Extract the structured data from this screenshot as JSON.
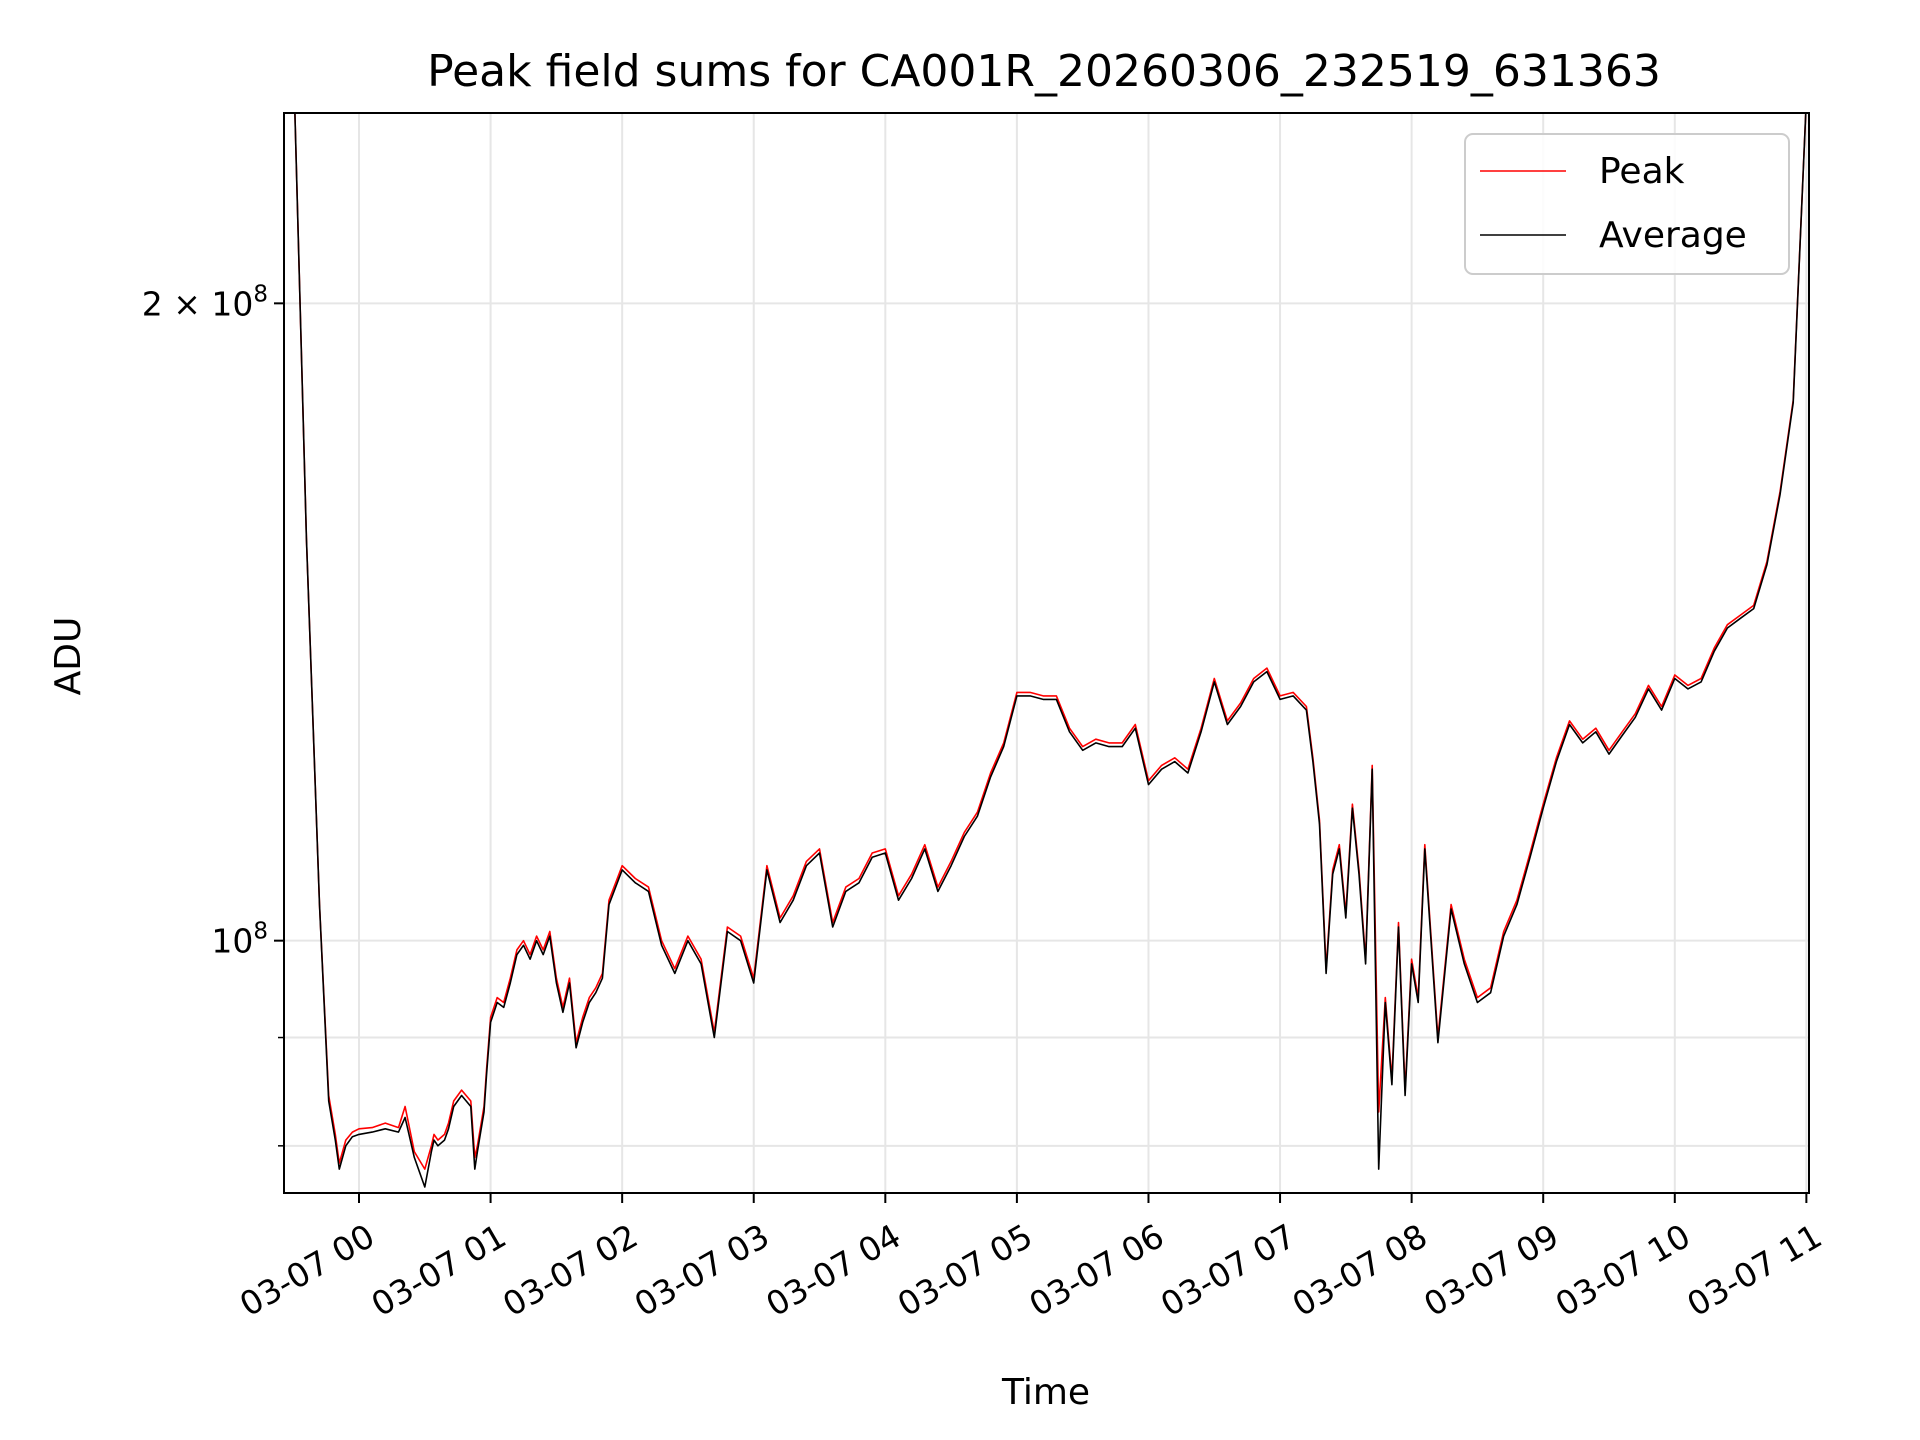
{
  "chart_data": {
    "type": "line",
    "title": "Peak field sums for CA001R_20260306_232519_631363",
    "xlabel": "Time",
    "ylabel": "ADU",
    "yscale": "log",
    "ylim": [
      76000000,
      246000000
    ],
    "xlim_hours": [
      -0.57,
      11.02
    ],
    "grid": true,
    "legend": {
      "placement": "top-right",
      "entries": [
        "Peak",
        "Average"
      ]
    },
    "x_ticks": [
      {
        "hour": 0,
        "label": "03-07 00"
      },
      {
        "hour": 1,
        "label": "03-07 01"
      },
      {
        "hour": 2,
        "label": "03-07 02"
      },
      {
        "hour": 3,
        "label": "03-07 03"
      },
      {
        "hour": 4,
        "label": "03-07 04"
      },
      {
        "hour": 5,
        "label": "03-07 05"
      },
      {
        "hour": 6,
        "label": "03-07 06"
      },
      {
        "hour": 7,
        "label": "03-07 07"
      },
      {
        "hour": 8,
        "label": "03-07 08"
      },
      {
        "hour": 9,
        "label": "03-07 09"
      },
      {
        "hour": 10,
        "label": "03-07 10"
      },
      {
        "hour": 11,
        "label": "03-07 11"
      }
    ],
    "y_major_ticks": [
      {
        "value": 100000000,
        "base": "10",
        "exp": "8"
      },
      {
        "value": 200000000,
        "base": "2 × 10",
        "exp": "8"
      }
    ],
    "y_minor_ticks": [
      80000000,
      90000000
    ],
    "series": [
      {
        "name": "Peak",
        "color": "#ff0000",
        "hours": [
          -0.57,
          -0.49,
          -0.4,
          -0.3,
          -0.23,
          -0.18,
          -0.15,
          -0.1,
          -0.05,
          0.0,
          0.1,
          0.2,
          0.3,
          0.35,
          0.42,
          0.5,
          0.55,
          0.57,
          0.6,
          0.65,
          0.68,
          0.72,
          0.78,
          0.85,
          0.88,
          0.9,
          0.95,
          0.97,
          1.0,
          1.05,
          1.1,
          1.15,
          1.2,
          1.25,
          1.3,
          1.35,
          1.4,
          1.45,
          1.5,
          1.55,
          1.6,
          1.65,
          1.7,
          1.75,
          1.8,
          1.85,
          1.9,
          2.0,
          2.1,
          2.2,
          2.3,
          2.4,
          2.5,
          2.6,
          2.7,
          2.8,
          2.9,
          3.0,
          3.1,
          3.2,
          3.3,
          3.4,
          3.5,
          3.6,
          3.7,
          3.8,
          3.9,
          4.0,
          4.1,
          4.2,
          4.3,
          4.4,
          4.5,
          4.6,
          4.7,
          4.8,
          4.9,
          5.0,
          5.1,
          5.2,
          5.3,
          5.4,
          5.5,
          5.6,
          5.7,
          5.8,
          5.9,
          6.0,
          6.1,
          6.2,
          6.3,
          6.4,
          6.5,
          6.6,
          6.7,
          6.8,
          6.9,
          7.0,
          7.1,
          7.2,
          7.25,
          7.3,
          7.35,
          7.4,
          7.45,
          7.5,
          7.55,
          7.6,
          7.65,
          7.7,
          7.75,
          7.8,
          7.85,
          7.9,
          7.95,
          8.0,
          8.05,
          8.1,
          8.2,
          8.3,
          8.4,
          8.5,
          8.6,
          8.7,
          8.8,
          8.9,
          9.0,
          9.1,
          9.2,
          9.3,
          9.4,
          9.5,
          9.6,
          9.7,
          9.8,
          9.9,
          10.0,
          10.1,
          10.2,
          10.3,
          10.4,
          10.5,
          10.6,
          10.7,
          10.8,
          10.9,
          11.0
        ],
        "values": [
          250000000,
          250000000,
          155000000,
          104000000,
          84500000,
          81000000,
          78500000,
          80500000,
          81200000,
          81500000,
          81600000,
          82000000,
          81600000,
          83500000,
          79500000,
          78000000,
          80000000,
          81000000,
          80500000,
          81000000,
          82000000,
          84000000,
          85000000,
          84000000,
          79000000,
          80000000,
          83500000,
          87000000,
          92000000,
          94000000,
          93500000,
          96000000,
          99000000,
          100000000,
          98500000,
          100500000,
          99000000,
          101000000,
          96000000,
          93000000,
          96000000,
          89500000,
          92000000,
          94000000,
          95000000,
          96500000,
          104500000,
          108500000,
          107000000,
          106000000,
          100000000,
          97000000,
          100500000,
          98000000,
          90500000,
          101500000,
          100500000,
          96000000,
          108500000,
          102500000,
          105000000,
          109000000,
          110500000,
          102000000,
          106000000,
          107000000,
          110000000,
          110500000,
          105000000,
          107500000,
          111000000,
          106000000,
          109000000,
          112500000,
          115000000,
          120000000,
          124000000,
          131000000,
          131000000,
          130500000,
          130500000,
          126000000,
          123500000,
          124500000,
          124000000,
          124000000,
          126500000,
          119000000,
          121000000,
          122000000,
          120500000,
          126000000,
          133000000,
          127000000,
          129500000,
          133000000,
          134500000,
          130500000,
          131000000,
          129000000,
          122000000,
          114000000,
          97000000,
          108000000,
          111000000,
          103000000,
          116000000,
          108000000,
          98000000,
          121000000,
          83000000,
          94000000,
          86000000,
          102000000,
          85000000,
          98000000,
          94000000,
          111000000,
          90000000,
          104000000,
          98000000,
          94000000,
          95000000,
          101000000,
          104500000,
          110000000,
          116000000,
          122000000,
          127000000,
          124500000,
          126000000,
          123000000,
          125500000,
          128000000,
          132000000,
          129000000,
          133500000,
          132000000,
          133000000,
          137500000,
          141000000,
          142500000,
          144000000,
          151000000,
          163000000,
          180000000,
          250000000
        ]
      },
      {
        "name": "Average",
        "color": "#000000",
        "hours": [
          -0.57,
          -0.49,
          -0.4,
          -0.3,
          -0.23,
          -0.18,
          -0.15,
          -0.1,
          -0.05,
          0.0,
          0.1,
          0.2,
          0.3,
          0.35,
          0.42,
          0.5,
          0.55,
          0.57,
          0.6,
          0.65,
          0.68,
          0.72,
          0.78,
          0.85,
          0.88,
          0.9,
          0.95,
          0.97,
          1.0,
          1.05,
          1.1,
          1.15,
          1.2,
          1.25,
          1.3,
          1.35,
          1.4,
          1.45,
          1.5,
          1.55,
          1.6,
          1.65,
          1.7,
          1.75,
          1.8,
          1.85,
          1.9,
          2.0,
          2.1,
          2.2,
          2.3,
          2.4,
          2.5,
          2.6,
          2.7,
          2.8,
          2.9,
          3.0,
          3.1,
          3.2,
          3.3,
          3.4,
          3.5,
          3.6,
          3.7,
          3.8,
          3.9,
          4.0,
          4.1,
          4.2,
          4.3,
          4.4,
          4.5,
          4.6,
          4.7,
          4.8,
          4.9,
          5.0,
          5.1,
          5.2,
          5.3,
          5.4,
          5.5,
          5.6,
          5.7,
          5.8,
          5.9,
          6.0,
          6.1,
          6.2,
          6.3,
          6.4,
          6.5,
          6.6,
          6.7,
          6.8,
          6.9,
          7.0,
          7.1,
          7.2,
          7.25,
          7.3,
          7.35,
          7.4,
          7.45,
          7.5,
          7.55,
          7.6,
          7.65,
          7.7,
          7.75,
          7.8,
          7.85,
          7.9,
          7.95,
          8.0,
          8.05,
          8.1,
          8.2,
          8.3,
          8.4,
          8.5,
          8.6,
          8.7,
          8.8,
          8.9,
          9.0,
          9.1,
          9.2,
          9.3,
          9.4,
          9.5,
          9.6,
          9.7,
          9.8,
          9.9,
          10.0,
          10.1,
          10.2,
          10.3,
          10.4,
          10.5,
          10.6,
          10.7,
          10.8,
          10.9,
          11.0
        ],
        "values": [
          250000000,
          250000000,
          155000000,
          104000000,
          84000000,
          80500000,
          78000000,
          80000000,
          80800000,
          81000000,
          81200000,
          81500000,
          81200000,
          82500000,
          79000000,
          76500000,
          79500000,
          80500000,
          80000000,
          80500000,
          81500000,
          83500000,
          84500000,
          83500000,
          78000000,
          79500000,
          83000000,
          86500000,
          91500000,
          93500000,
          93000000,
          95500000,
          98500000,
          99500000,
          98000000,
          100000000,
          98500000,
          100500000,
          95500000,
          92500000,
          95500000,
          89000000,
          91500000,
          93500000,
          94500000,
          96000000,
          104000000,
          108000000,
          106500000,
          105500000,
          99500000,
          96500000,
          100000000,
          97500000,
          90000000,
          101000000,
          100000000,
          95500000,
          108000000,
          102000000,
          104500000,
          108500000,
          110000000,
          101500000,
          105500000,
          106500000,
          109500000,
          110000000,
          104500000,
          107000000,
          110500000,
          105500000,
          108500000,
          112000000,
          114500000,
          119500000,
          123500000,
          130500000,
          130500000,
          130000000,
          130000000,
          125500000,
          123000000,
          124000000,
          123500000,
          123500000,
          126000000,
          118500000,
          120500000,
          121500000,
          120000000,
          125500000,
          132500000,
          126500000,
          129000000,
          132500000,
          134000000,
          130000000,
          130500000,
          128500000,
          121500000,
          113500000,
          96500000,
          107500000,
          110500000,
          102500000,
          115500000,
          107500000,
          97500000,
          120500000,
          78000000,
          93500000,
          85500000,
          101500000,
          84500000,
          97500000,
          93500000,
          110500000,
          89500000,
          103500000,
          97500000,
          93500000,
          94500000,
          100500000,
          104000000,
          109500000,
          115500000,
          121500000,
          126500000,
          124000000,
          125500000,
          122500000,
          125000000,
          127500000,
          131500000,
          128500000,
          133000000,
          131500000,
          132500000,
          137000000,
          140500000,
          142000000,
          143500000,
          150500000,
          162500000,
          179500000,
          250000000
        ]
      }
    ]
  }
}
